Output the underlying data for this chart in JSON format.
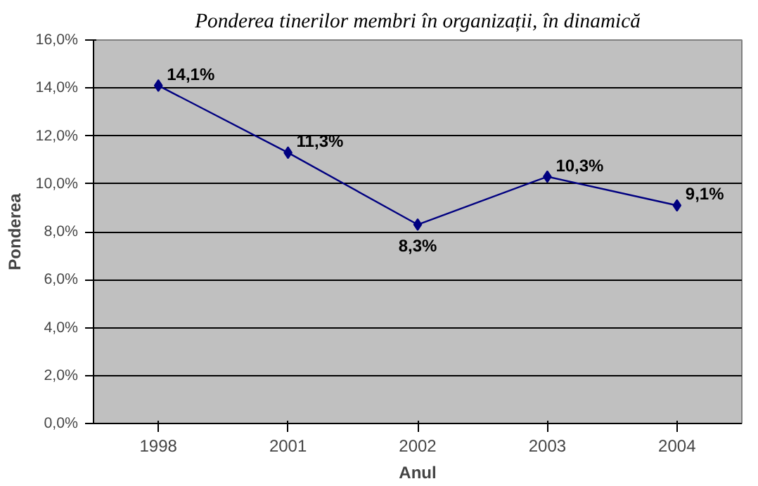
{
  "chart_data": {
    "type": "line",
    "title": "Ponderea tinerilor membri în organizații, în dinamică",
    "xlabel": "Anul",
    "ylabel": "Ponderea",
    "categories": [
      "1998",
      "2001",
      "2002",
      "2003",
      "2004"
    ],
    "series": [
      {
        "color": "#000080",
        "values": [
          14.1,
          11.3,
          8.3,
          10.3,
          9.1
        ],
        "value_labels": [
          "14,1%",
          "11,3%",
          "8,3%",
          "10,3%",
          "9,1%"
        ]
      }
    ],
    "ylim": [
      0,
      16
    ],
    "yticks": [
      {
        "value": 0,
        "label": "0,0%"
      },
      {
        "value": 2,
        "label": "2,0%"
      },
      {
        "value": 4,
        "label": "4,0%"
      },
      {
        "value": 6,
        "label": "6,0%"
      },
      {
        "value": 8,
        "label": "8,0%"
      },
      {
        "value": 10,
        "label": "10,0%"
      },
      {
        "value": 12,
        "label": "12,0%"
      },
      {
        "value": 14,
        "label": "14,0%"
      },
      {
        "value": 16,
        "label": "16,0%"
      }
    ],
    "grid": "y",
    "marker": "diamond",
    "line_style": "solid"
  }
}
